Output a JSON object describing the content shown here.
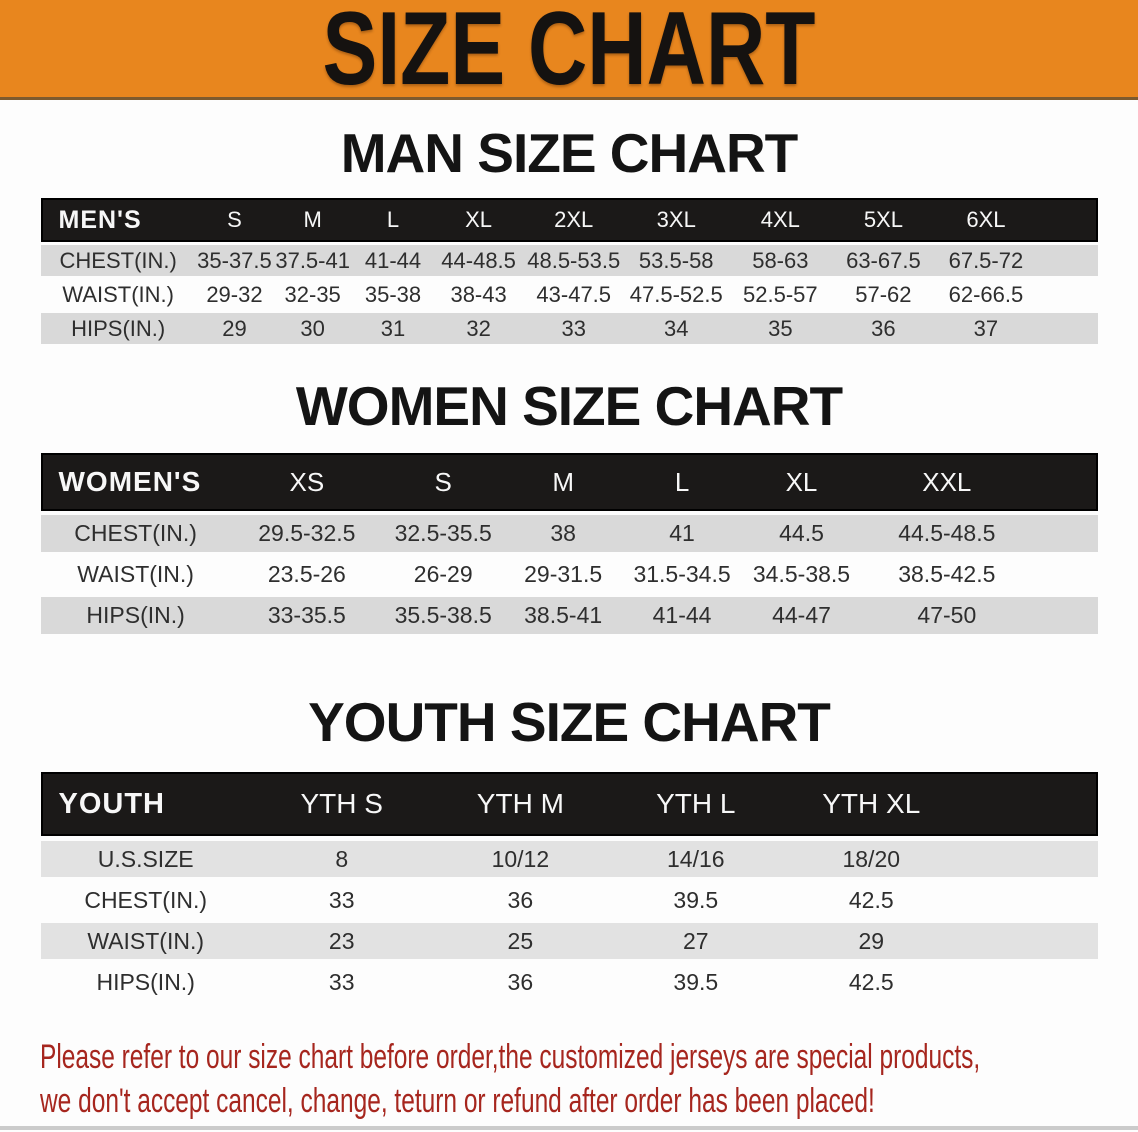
{
  "banner": {
    "title": "SIZE CHART",
    "bg_color": "#E8861E",
    "title_color": "#151210"
  },
  "sections": [
    {
      "heading": "MAN SIZE CHART",
      "table": {
        "category": "MEN'S",
        "header": [
          "MEN'S",
          "S",
          "M",
          "L",
          "XL",
          "2XL",
          "3XL",
          "4XL",
          "5XL",
          "6XL"
        ],
        "rows": [
          {
            "label": "CHEST(IN.)",
            "values": [
              "35-37.5",
              "37.5-41",
              "41-44",
              "44-48.5",
              "48.5-53.5",
              "53.5-58",
              "58-63",
              "63-67.5",
              "67.5-72"
            ]
          },
          {
            "label": "WAIST(IN.)",
            "values": [
              "29-32",
              "32-35",
              "35-38",
              "38-43",
              "43-47.5",
              "47.5-52.5",
              "52.5-57",
              "57-62",
              "62-66.5"
            ]
          },
          {
            "label": "HIPS(IN.)",
            "values": [
              "29",
              "30",
              "31",
              "32",
              "33",
              "34",
              "35",
              "36",
              "37"
            ]
          }
        ]
      }
    },
    {
      "heading": "WOMEN SIZE CHART",
      "table": {
        "category": "WOMEN'S",
        "header": [
          "WOMEN'S",
          "XS",
          "S",
          "M",
          "L",
          "XL",
          "XXL"
        ],
        "rows": [
          {
            "label": "CHEST(IN.)",
            "values": [
              "29.5-32.5",
              "32.5-35.5",
              "38",
              "41",
              "44.5",
              "44.5-48.5"
            ]
          },
          {
            "label": "WAIST(IN.)",
            "values": [
              "23.5-26",
              "26-29",
              "29-31.5",
              "31.5-34.5",
              "34.5-38.5",
              "38.5-42.5"
            ]
          },
          {
            "label": "HIPS(IN.)",
            "values": [
              "33-35.5",
              "35.5-38.5",
              "38.5-41",
              "41-44",
              "44-47",
              "47-50"
            ]
          }
        ]
      }
    },
    {
      "heading": "YOUTH SIZE CHART",
      "table": {
        "category": "YOUTH",
        "header": [
          "YOUTH",
          "YTH S",
          "YTH M",
          "YTH L",
          "YTH XL"
        ],
        "rows": [
          {
            "label": "U.S.SIZE",
            "values": [
              "8",
              "10/12",
              "14/16",
              "18/20"
            ]
          },
          {
            "label": "CHEST(IN.)",
            "values": [
              "33",
              "36",
              "39.5",
              "42.5"
            ]
          },
          {
            "label": "WAIST(IN.)",
            "values": [
              "23",
              "25",
              "27",
              "29"
            ]
          },
          {
            "label": "HIPS(IN.)",
            "values": [
              "33",
              "36",
              "39.5",
              "42.5"
            ]
          }
        ]
      }
    }
  ],
  "footer": {
    "line1": "Please refer to our size chart before order,the customized jerseys are special products,",
    "line2": "we don't accept cancel, change, teturn or refund after order has been placed!",
    "text_color": "#A6261E"
  }
}
